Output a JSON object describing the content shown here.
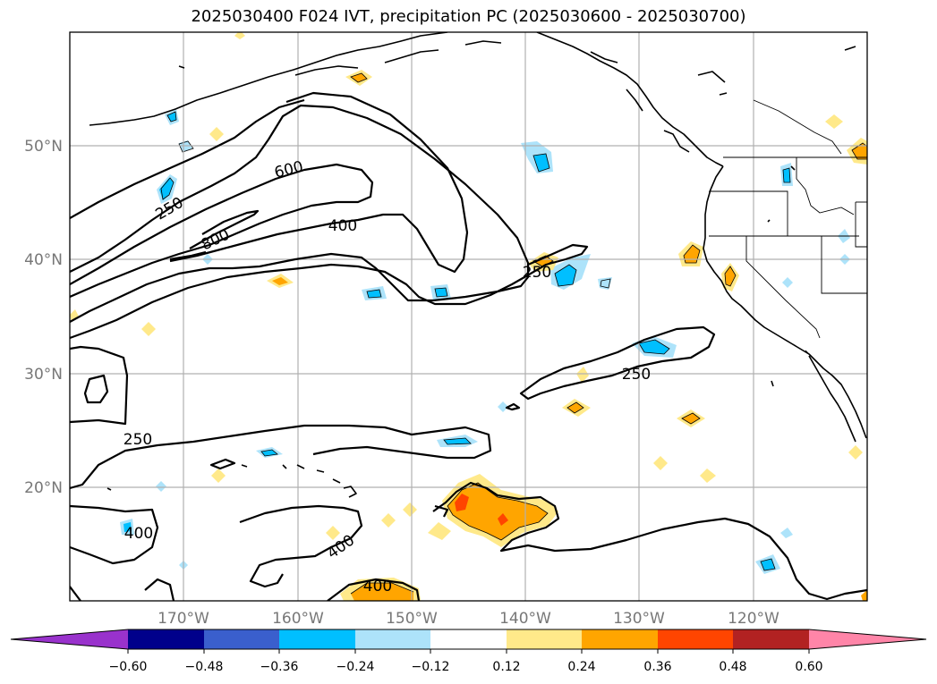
{
  "title": "2025030400 F024 IVT, precipitation PC (2025030600 - 2025030700)",
  "map": {
    "lat_labels": [
      "50°N",
      "40°N",
      "30°N",
      "20°N"
    ],
    "lon_labels": [
      "170°W",
      "160°W",
      "150°W",
      "140°W",
      "130°W",
      "120°W"
    ],
    "grid": true,
    "coastlines": true,
    "state_borders": true
  },
  "ivt_contours": {
    "levels": [
      "250",
      "400",
      "600",
      "800"
    ],
    "labels": [
      "600",
      "250",
      "800",
      "400",
      "250",
      "250",
      "250",
      "400",
      "400",
      "400"
    ],
    "color": "#000000"
  },
  "colorbar": {
    "ticks": [
      "−0.60",
      "−0.48",
      "−0.36",
      "−0.24",
      "−0.12",
      "0.12",
      "0.24",
      "0.36",
      "0.48",
      "0.60"
    ],
    "colors": [
      "#9932CC",
      "#00008B",
      "#3A5FCD",
      "#00BFFF",
      "#ADE3FA",
      "#FFFFFF",
      "#FFE98A",
      "#FFA500",
      "#FF4500",
      "#B22222",
      "#FF85A8"
    ]
  }
}
